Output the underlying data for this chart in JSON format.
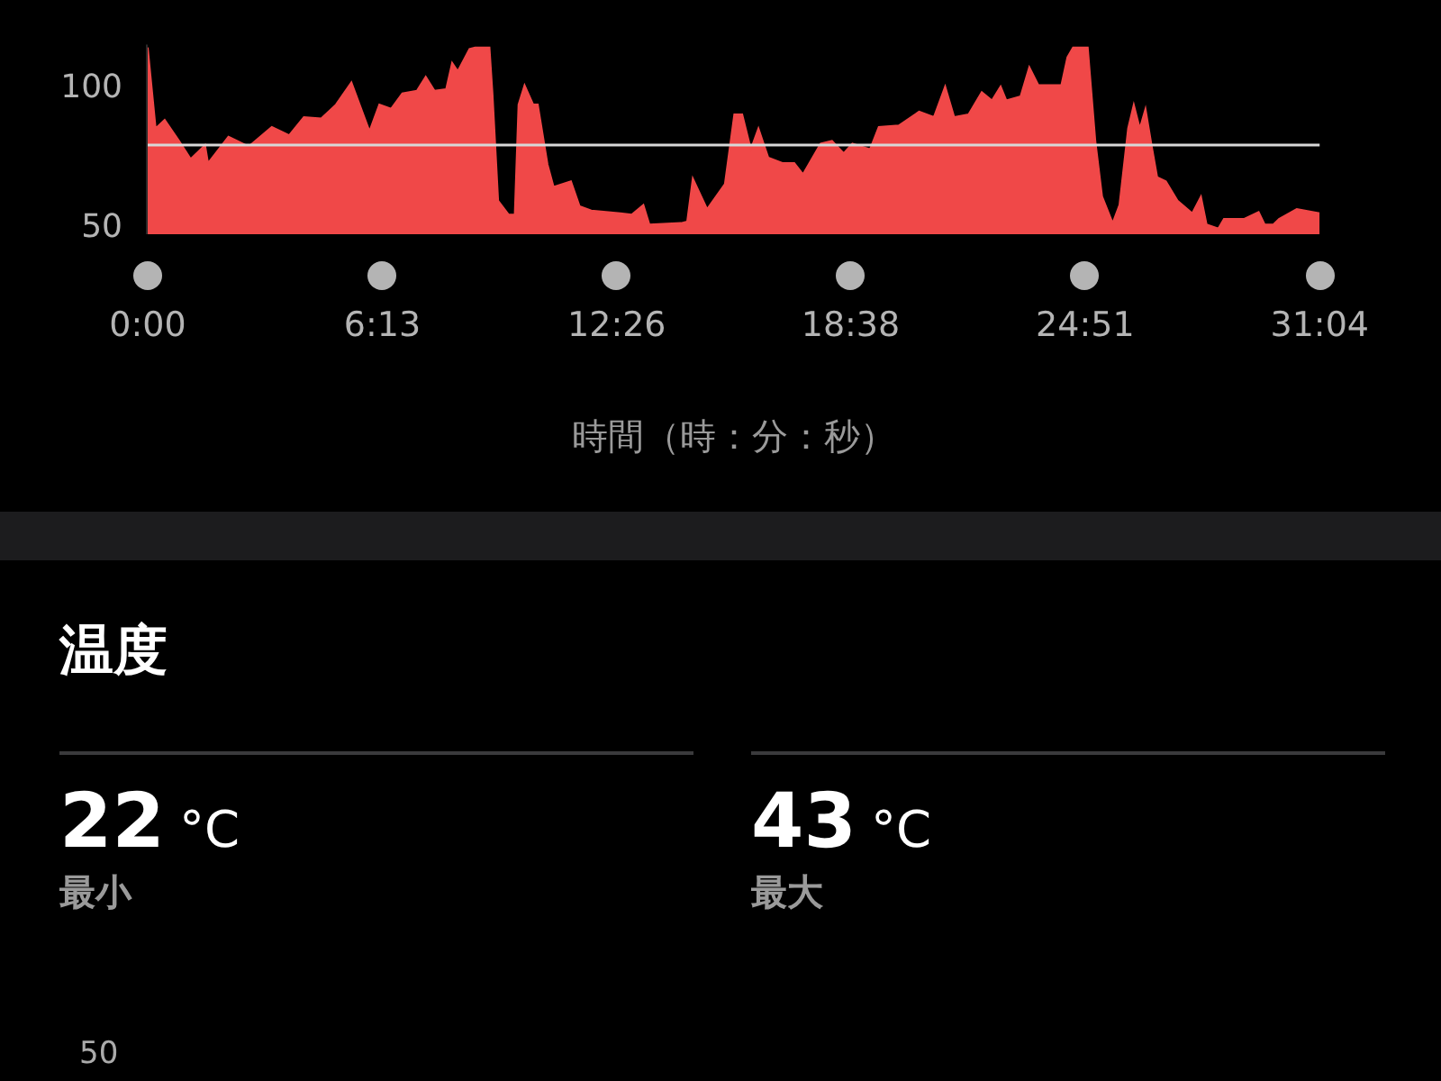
{
  "chart_data": [
    {
      "type": "area",
      "xlabel": "時間（時：分：秒）",
      "color": "#f04848",
      "legend": false,
      "xlim": [
        0,
        31.0667
      ],
      "xticks": [
        {
          "value": 0,
          "label": "0:00"
        },
        {
          "value": 6.2167,
          "label": "6:13"
        },
        {
          "value": 12.4333,
          "label": "12:26"
        },
        {
          "value": 18.6333,
          "label": "18:38"
        },
        {
          "value": 24.85,
          "label": "24:51"
        },
        {
          "value": 31.0667,
          "label": "31:04"
        }
      ],
      "ylim": [
        48,
        116
      ],
      "yticks": [
        50,
        100
      ],
      "ref_lines": [
        {
          "axis": "y",
          "value": 80,
          "color": "#d8d8d8"
        }
      ],
      "x": [
        0,
        0.21,
        0.45,
        0.83,
        1.14,
        1.52,
        1.6,
        2.14,
        2.68,
        3.29,
        3.75,
        4.14,
        4.6,
        4.99,
        5.4,
        5.88,
        6.14,
        6.45,
        6.75,
        7.14,
        7.37,
        7.6,
        7.91,
        8.07,
        8.22,
        8.53,
        8.68,
        9.06,
        9.14,
        9.29,
        9.57,
        9.73,
        9.83,
        9.99,
        10.22,
        10.34,
        10.6,
        10.76,
        11.22,
        11.45,
        11.76,
        12.53,
        12.83,
        13.14,
        13.3,
        14.14,
        14.3,
        14.45,
        14.83,
        15.3,
        15.55,
        15.76,
        15.99,
        16.19,
        16.45,
        16.84,
        17.14,
        17.37,
        17.84,
        18.14,
        18.45,
        18.68,
        19.15,
        19.38,
        19.91,
        20.45,
        20.84,
        21.14,
        21.38,
        21.76,
        22.11,
        22.38,
        22.61,
        22.76,
        23.14,
        23.37,
        23.61,
        24.22,
        24.38,
        24.53,
        24.92,
        25.12,
        25.3,
        25.58,
        25.76,
        25.99,
        26.14,
        26.3,
        26.45,
        26.61,
        26.76,
        26.99,
        27.3,
        27.69,
        27.92,
        28.07,
        28.38,
        28.53,
        29.07,
        29.45,
        29.61,
        29.84,
        29.99,
        30.46,
        31.0667
      ],
      "values": [
        115,
        86,
        89,
        81.5,
        75,
        80,
        73.5,
        83,
        79.5,
        86.5,
        83.5,
        90,
        89.5,
        94.5,
        102.5,
        85,
        94.5,
        93,
        98.5,
        99.5,
        104.5,
        99.5,
        100,
        109.5,
        106.5,
        114.5,
        115,
        115,
        98.5,
        60,
        55,
        55,
        94.5,
        101.5,
        94.5,
        94.5,
        73,
        65,
        67,
        58,
        56.5,
        55.5,
        55,
        58.5,
        51.5,
        52,
        52.5,
        68,
        57,
        66,
        91,
        91,
        78.5,
        86,
        75.5,
        73.5,
        73.5,
        69.5,
        80.5,
        81.5,
        77,
        80.5,
        78.5,
        86.5,
        87,
        92,
        90,
        101,
        90,
        91,
        99,
        96,
        101,
        96,
        97.5,
        108,
        101.5,
        101.5,
        111.5,
        115,
        115,
        81.5,
        61.5,
        52,
        58.5,
        86,
        94.5,
        86,
        93,
        80,
        68.5,
        67,
        60,
        55.5,
        61.5,
        51.5,
        50,
        53.5,
        53.5,
        56,
        51.5,
        51.5,
        53.5,
        57,
        55.5
      ]
    },
    {
      "type": "other",
      "title": "温度",
      "annotations": [
        "22 °C",
        "最小",
        "43 °C",
        "最大",
        "50"
      ]
    }
  ]
}
